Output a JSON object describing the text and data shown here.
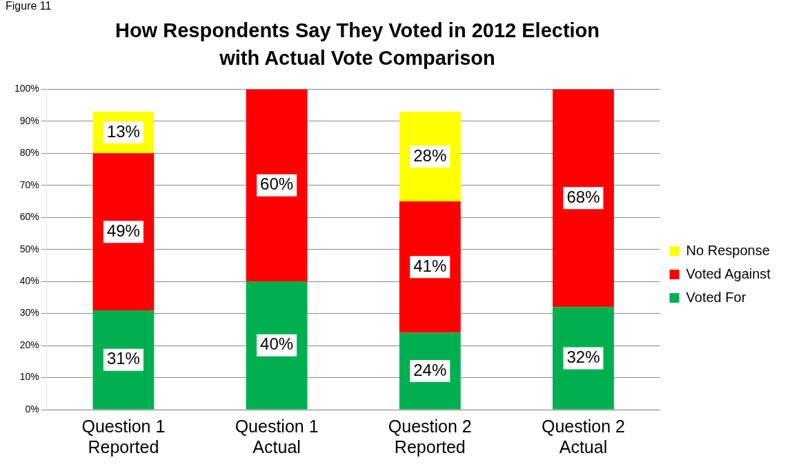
{
  "chart_data": {
    "type": "bar",
    "title": "How Respondents Say They Voted in 2012 Election with Actual Vote Comparison",
    "annotations": [
      "Figure 11"
    ],
    "categories": [
      "Question 1 Reported",
      "Question 1 Actual",
      "Question 2 Reported",
      "Question 2 Actual"
    ],
    "stacked": true,
    "series": [
      {
        "name": "Voted For",
        "color": "#00b050",
        "values": [
          31,
          40,
          24,
          32
        ],
        "value_labels": [
          "31%",
          "40%",
          "24%",
          "32%"
        ]
      },
      {
        "name": "Voted Against",
        "color": "#ff0000",
        "values": [
          49,
          60,
          41,
          68
        ],
        "value_labels": [
          "49%",
          "60%",
          "41%",
          "68%"
        ]
      },
      {
        "name": "No Response",
        "color": "#ffff00",
        "values": [
          13,
          null,
          28,
          null
        ],
        "value_labels": [
          "13%",
          null,
          "28%",
          null
        ]
      }
    ],
    "ylim": [
      0,
      100
    ],
    "yticks": [
      {
        "value": 0,
        "label": "0%"
      },
      {
        "value": 10,
        "label": "10%"
      },
      {
        "value": 20,
        "label": "20%"
      },
      {
        "value": 30,
        "label": "30%"
      },
      {
        "value": 40,
        "label": "40%"
      },
      {
        "value": 50,
        "label": "50%"
      },
      {
        "value": 60,
        "label": "60%"
      },
      {
        "value": 70,
        "label": "70%"
      },
      {
        "value": 80,
        "label": "80%"
      },
      {
        "value": 90,
        "label": "90%"
      },
      {
        "value": 100,
        "label": "100%"
      }
    ],
    "grid": "y",
    "legend": "right"
  }
}
